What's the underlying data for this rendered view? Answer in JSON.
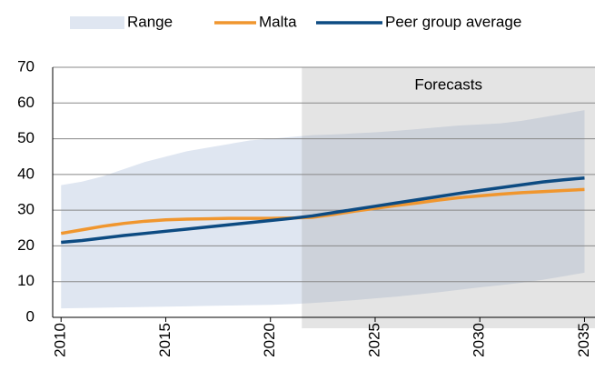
{
  "chart_data": {
    "type": "line",
    "x": [
      2010,
      2011,
      2012,
      2013,
      2014,
      2015,
      2016,
      2017,
      2018,
      2019,
      2020,
      2021,
      2022,
      2023,
      2024,
      2025,
      2026,
      2027,
      2028,
      2029,
      2030,
      2031,
      2032,
      2033,
      2034,
      2035
    ],
    "series": [
      {
        "name": "Range",
        "color": "#dfe6f1",
        "kind": "band",
        "values": [
          37,
          38,
          39.5,
          41.5,
          43.5,
          45,
          46.5,
          47.5,
          48.5,
          49.5,
          50,
          50.5,
          51,
          51.2,
          51.5,
          51.8,
          52.2,
          52.7,
          53.2,
          53.7,
          54,
          54.3,
          55,
          56,
          57,
          58
        ],
        "lower": [
          2.5,
          2.6,
          2.7,
          2.8,
          2.9,
          3,
          3.1,
          3.2,
          3.3,
          3.4,
          3.5,
          3.7,
          4,
          4.4,
          4.8,
          5.3,
          5.8,
          6.4,
          7,
          7.7,
          8.4,
          9,
          9.7,
          10.5,
          11.5,
          12.5
        ]
      },
      {
        "name": "Malta",
        "color": "#f0962e",
        "values": [
          23.5,
          24.5,
          25.5,
          26.3,
          26.9,
          27.3,
          27.5,
          27.6,
          27.7,
          27.7,
          27.7,
          27.8,
          28,
          28.8,
          29.7,
          30.5,
          31.3,
          32,
          32.8,
          33.5,
          34,
          34.5,
          34.9,
          35.2,
          35.5,
          35.8
        ]
      },
      {
        "name": "Peer group average",
        "color": "#0d4b82",
        "values": [
          21,
          21.5,
          22.2,
          22.9,
          23.5,
          24.1,
          24.7,
          25.3,
          25.9,
          26.5,
          27.1,
          27.7,
          28.4,
          29.3,
          30.2,
          31.1,
          32,
          32.9,
          33.8,
          34.7,
          35.5,
          36.3,
          37.1,
          37.9,
          38.5,
          39
        ]
      }
    ],
    "forecast": {
      "label": "Forecasts",
      "start": 2021.5,
      "color": "#a6a6a6"
    },
    "xlim": [
      2009.6,
      2035.5
    ],
    "xticks": [
      2010,
      2015,
      2020,
      2025,
      2030,
      2035
    ],
    "ylim": [
      0,
      70
    ],
    "yticks": [
      0,
      10,
      20,
      30,
      40,
      50,
      60,
      70
    ],
    "grid": true
  }
}
